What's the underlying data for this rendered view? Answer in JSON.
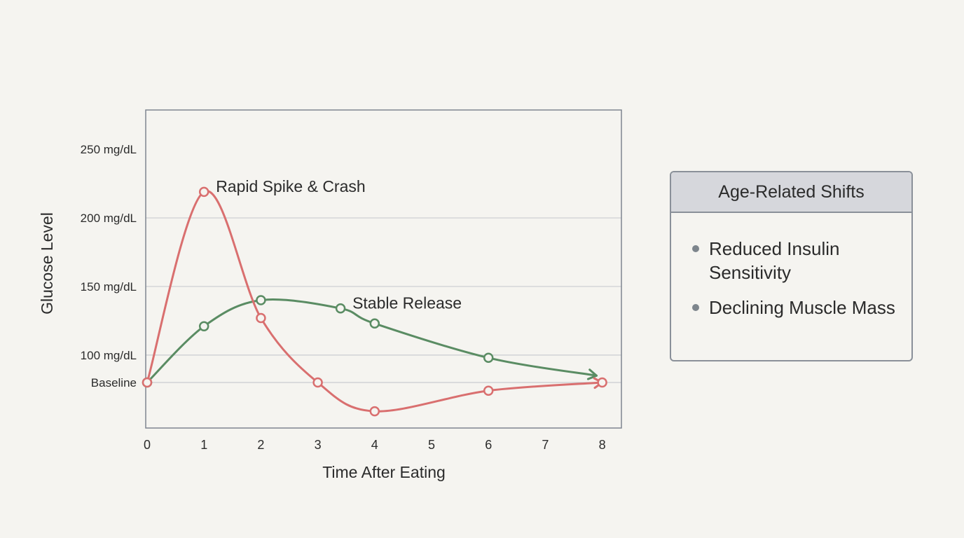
{
  "chart_data": {
    "type": "line",
    "ylabel": "Glucose Level",
    "xlabel": "Time After Eating",
    "x_ticks": [
      "0",
      "1",
      "2",
      "3",
      "4",
      "5",
      "6",
      "7",
      "8"
    ],
    "xlim": [
      0,
      8.4
    ],
    "y_ticks": [
      {
        "value": 80,
        "label": "Baseline"
      },
      {
        "value": 100,
        "label": "100 mg/dL"
      },
      {
        "value": 150,
        "label": "150 mg/dL"
      },
      {
        "value": 200,
        "label": "200 mg/dL"
      },
      {
        "value": 250,
        "label": "250 mg/dL"
      }
    ],
    "ylim": [
      47,
      250
    ],
    "grid": "horizontal",
    "series": [
      {
        "name": "Rapid Spike & Crash",
        "color": "#d96f6f",
        "points": [
          [
            0,
            80
          ],
          [
            1,
            219
          ],
          [
            2,
            127
          ],
          [
            3,
            80
          ],
          [
            4,
            59
          ],
          [
            6,
            74
          ],
          [
            8,
            80
          ]
        ]
      },
      {
        "name": "Stable Release",
        "color": "#5a8c63",
        "points": [
          [
            0,
            80
          ],
          [
            1,
            121
          ],
          [
            2,
            140
          ],
          [
            3.4,
            134
          ],
          [
            4,
            123
          ],
          [
            6,
            98
          ],
          [
            7.9,
            85
          ]
        ],
        "markers": [
          0,
          1,
          2,
          3,
          4,
          5
        ]
      }
    ],
    "annotations": [
      {
        "text": "Rapid Spike & Crash",
        "x": 1,
        "y": 219
      },
      {
        "text": "Stable Release",
        "x": 3.4,
        "y": 134
      }
    ]
  },
  "legend": {
    "title": "Age-Related Shifts",
    "items": [
      "Reduced Insulin Sensitivity",
      "Declining Muscle Mass"
    ]
  }
}
